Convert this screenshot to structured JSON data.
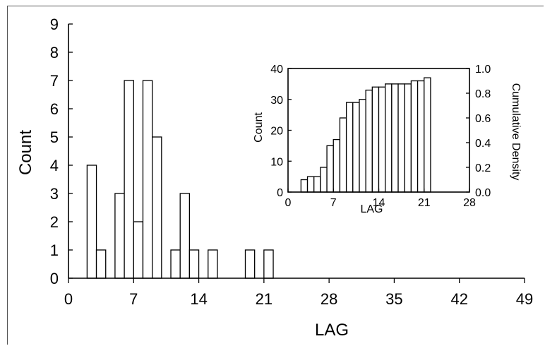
{
  "chart_data": [
    {
      "type": "bar",
      "xlabel": "LAG",
      "ylabel": "Count",
      "xlim": [
        0,
        49
      ],
      "ylim": [
        0,
        9
      ],
      "xticks": [
        0,
        7,
        14,
        21,
        28,
        35,
        42,
        49
      ],
      "yticks": [
        0,
        1,
        2,
        3,
        4,
        5,
        6,
        7,
        8,
        9
      ],
      "bin_width": 1,
      "bins": [
        {
          "x": 2,
          "value": 4
        },
        {
          "x": 3,
          "value": 1
        },
        {
          "x": 5,
          "value": 3
        },
        {
          "x": 6,
          "value": 7
        },
        {
          "x": 7,
          "value": 2
        },
        {
          "x": 8,
          "value": 7
        },
        {
          "x": 9,
          "value": 5
        },
        {
          "x": 11,
          "value": 1
        },
        {
          "x": 12,
          "value": 3
        },
        {
          "x": 13,
          "value": 1
        },
        {
          "x": 15,
          "value": 1
        },
        {
          "x": 19,
          "value": 1
        },
        {
          "x": 21,
          "value": 1
        }
      ]
    },
    {
      "type": "bar",
      "role": "inset cumulative histogram",
      "xlabel": "LAG",
      "ylabel": "Count",
      "y2label": "Cumulative Density",
      "xlim": [
        0,
        28
      ],
      "ylim": [
        0,
        40
      ],
      "y2lim": [
        0,
        1.0
      ],
      "xticks": [
        0,
        7,
        14,
        21,
        28
      ],
      "yticks": [
        0,
        10,
        20,
        30,
        40
      ],
      "y2ticks": [
        "0.0",
        "0.2",
        "0.4",
        "0.6",
        "0.8",
        "1.0"
      ],
      "bin_width": 1,
      "bins": [
        {
          "x": 2,
          "value": 4
        },
        {
          "x": 3,
          "value": 5
        },
        {
          "x": 4,
          "value": 5
        },
        {
          "x": 5,
          "value": 8
        },
        {
          "x": 6,
          "value": 15
        },
        {
          "x": 7,
          "value": 17
        },
        {
          "x": 8,
          "value": 24
        },
        {
          "x": 9,
          "value": 29
        },
        {
          "x": 10,
          "value": 29
        },
        {
          "x": 11,
          "value": 30
        },
        {
          "x": 12,
          "value": 33
        },
        {
          "x": 13,
          "value": 34
        },
        {
          "x": 14,
          "value": 34
        },
        {
          "x": 15,
          "value": 35
        },
        {
          "x": 16,
          "value": 35
        },
        {
          "x": 17,
          "value": 35
        },
        {
          "x": 18,
          "value": 35
        },
        {
          "x": 19,
          "value": 36
        },
        {
          "x": 20,
          "value": 36
        },
        {
          "x": 21,
          "value": 37
        }
      ]
    }
  ]
}
